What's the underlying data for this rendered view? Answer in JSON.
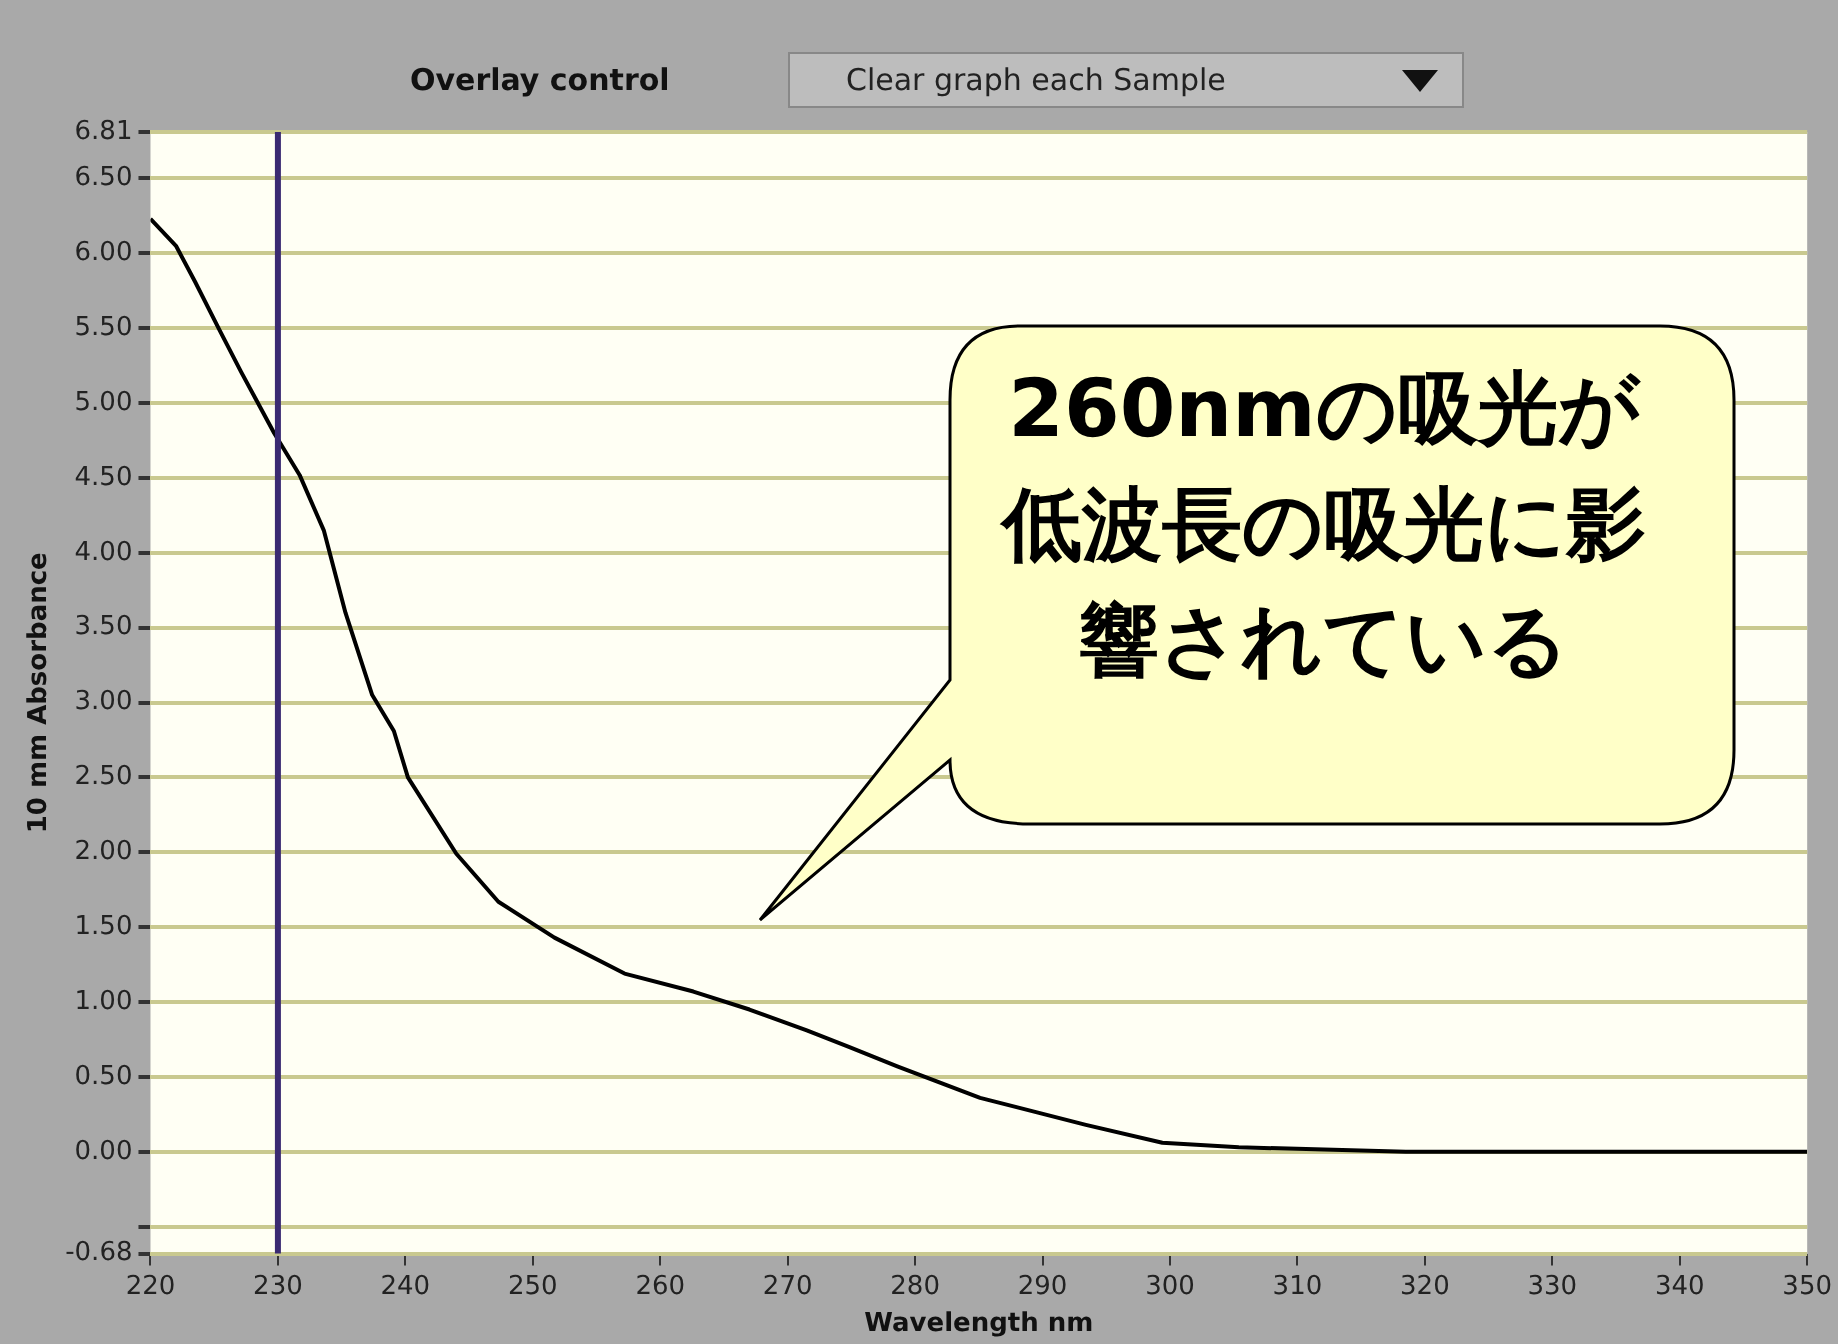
{
  "chart_data": {
    "type": "line",
    "xlabel": "Wavelength nm",
    "ylabel": "10 mm Absorbance",
    "annotations": [
      "Overlay control",
      "Clear graph each Sample",
      "260nmの吸光が低波長の吸光に影響されている"
    ],
    "xlim": [
      220,
      350
    ],
    "xticks": [
      220,
      230,
      240,
      250,
      260,
      270,
      280,
      290,
      300,
      310,
      320,
      330,
      340,
      350
    ],
    "ylim": [
      -0.68,
      6.81
    ],
    "yticks": [
      {
        "value": -0.68,
        "label": "-0.68"
      },
      {
        "value": -0.5,
        "label": null
      },
      {
        "value": 0,
        "label": "0.00"
      },
      {
        "value": 0.5,
        "label": "0.50"
      },
      {
        "value": 1,
        "label": "1.00"
      },
      {
        "value": 1.5,
        "label": "1.50"
      },
      {
        "value": 2,
        "label": "2.00"
      },
      {
        "value": 2.5,
        "label": "2.50"
      },
      {
        "value": 3,
        "label": "3.00"
      },
      {
        "value": 3.5,
        "label": "3.50"
      },
      {
        "value": 4,
        "label": "4.00"
      },
      {
        "value": 4.5,
        "label": "4.50"
      },
      {
        "value": 5,
        "label": "5.00"
      },
      {
        "value": 5.5,
        "label": "5.50"
      },
      {
        "value": 6,
        "label": "6.00"
      },
      {
        "value": 6.5,
        "label": "6.50"
      },
      {
        "value": 6.81,
        "label": "6.81"
      }
    ],
    "grid": "y",
    "legend": false,
    "marker": "none",
    "line_style": "solid",
    "ref_lines": [
      {
        "axis": "x",
        "value": 230,
        "color": "#3a2a72"
      }
    ],
    "series": [
      {
        "color": "#000000",
        "x": [
          220,
          222,
          223.5,
          225.4,
          227.1,
          229.7,
          231.7,
          233.6,
          235.3,
          237.4,
          239.1,
          240.2,
          244,
          247.3,
          251.7,
          257.2,
          262.6,
          267,
          271.5,
          274.8,
          278.6,
          285.1,
          293.4,
          299.4,
          305.4,
          318.5,
          350
        ],
        "values": [
          6.23,
          6.05,
          5.81,
          5.49,
          5.21,
          4.8,
          4.52,
          4.15,
          3.6,
          3.05,
          2.81,
          2.5,
          1.99,
          1.67,
          1.43,
          1.19,
          1.07,
          0.95,
          0.81,
          0.7,
          0.57,
          0.36,
          0.18,
          0.06,
          0.03,
          0,
          0
        ]
      }
    ]
  }
}
